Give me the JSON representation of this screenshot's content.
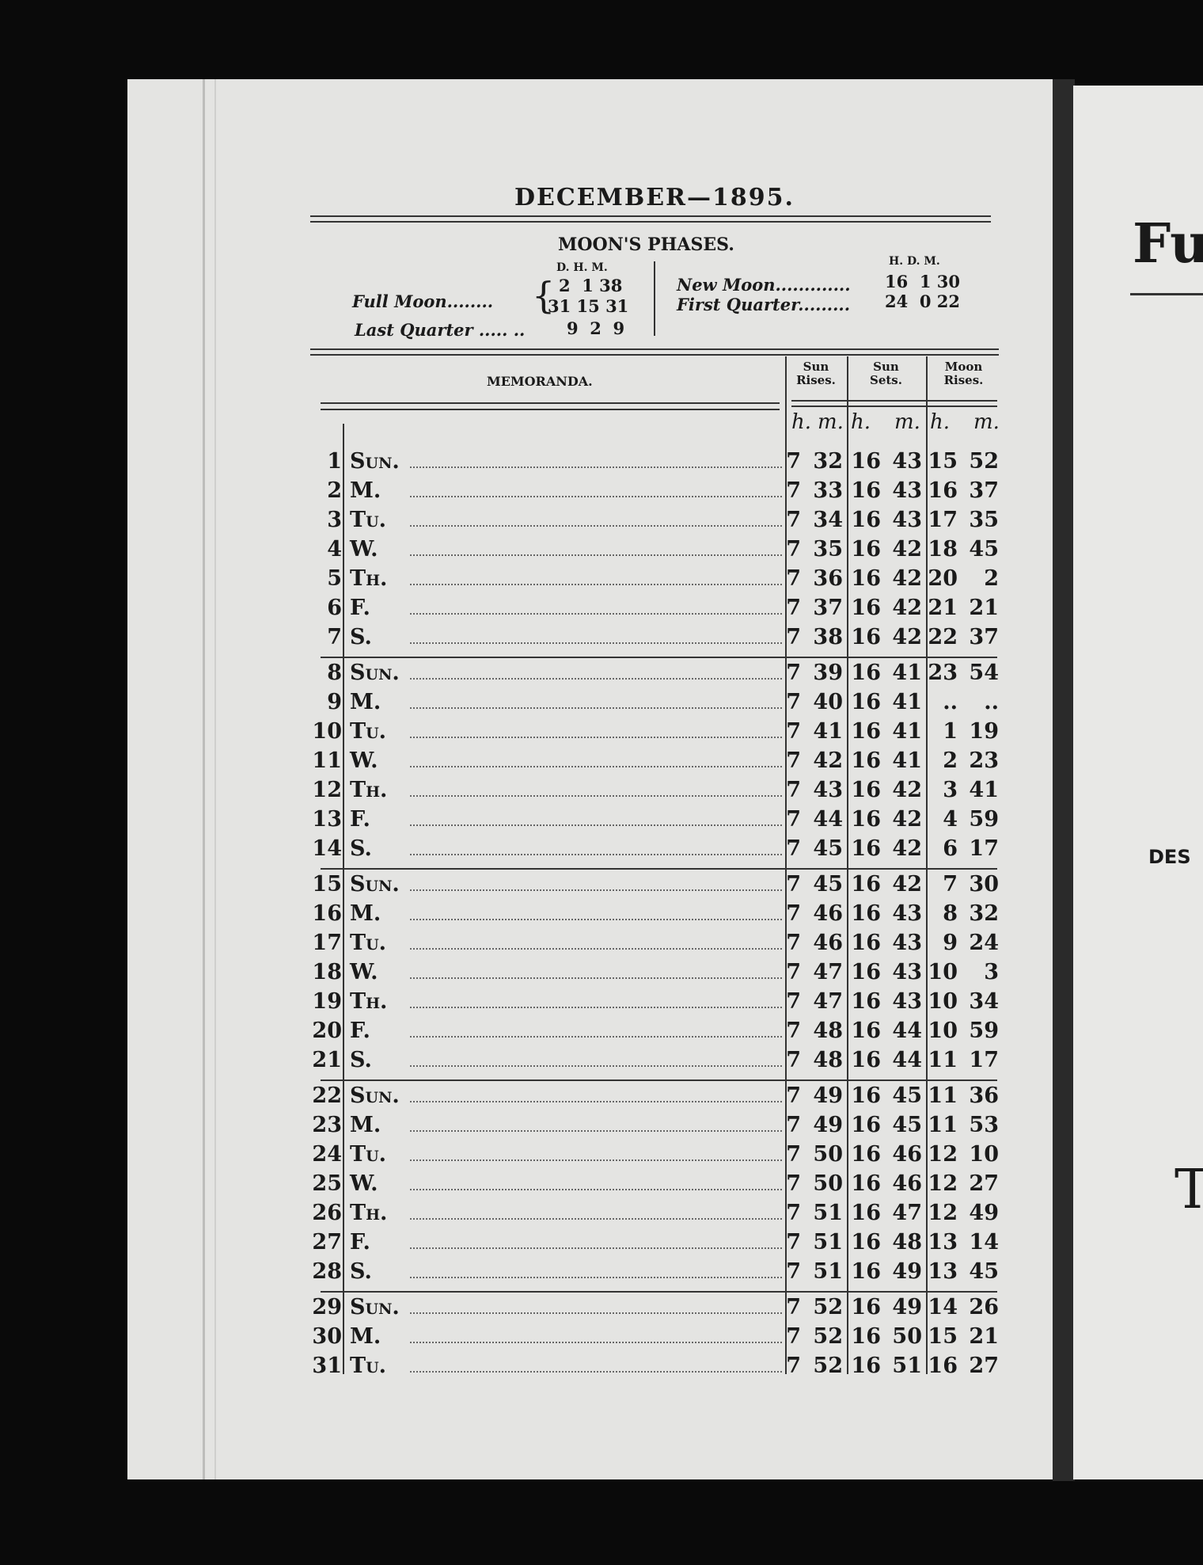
{
  "title": "DECEMBER—1895.",
  "moon_phases": {
    "heading": "MOON'S PHASES.",
    "left_cols": "D. H. M.",
    "right_cols": "H. D. M.",
    "full_moon": {
      "label": "Full Moon........",
      "values1": "2  1 38",
      "values2": "31 15 31"
    },
    "last_quarter": {
      "label": "Last Quarter ..... ..",
      "values": "9  2  9"
    },
    "new_moon": {
      "label": "New Moon.............",
      "values": "16  1 30"
    },
    "first_quarter": {
      "label": "First Quarter.........",
      "values": "24  0 22"
    }
  },
  "table": {
    "memoranda": "MEMORANDA.",
    "sun_rises": "Sun Rises.",
    "sun_sets": "Sun Sets.",
    "moon_rises": "Moon Rises.",
    "h": "h.",
    "m": "m.",
    "rows": [
      [
        "1",
        "Sun.",
        "7",
        "32",
        "16",
        "43",
        "15",
        "52"
      ],
      [
        "2",
        "M.",
        "7",
        "33",
        "16",
        "43",
        "16",
        "37"
      ],
      [
        "3",
        "Tu.",
        "7",
        "34",
        "16",
        "43",
        "17",
        "35"
      ],
      [
        "4",
        "W.",
        "7",
        "35",
        "16",
        "42",
        "18",
        "45"
      ],
      [
        "5",
        "Th.",
        "7",
        "36",
        "16",
        "42",
        "20",
        "2"
      ],
      [
        "6",
        "F.",
        "7",
        "37",
        "16",
        "42",
        "21",
        "21"
      ],
      [
        "7",
        "S.",
        "7",
        "38",
        "16",
        "42",
        "22",
        "37"
      ],
      [
        "8",
        "Sun.",
        "7",
        "39",
        "16",
        "41",
        "23",
        "54"
      ],
      [
        "9",
        "M.",
        "7",
        "40",
        "16",
        "41",
        "..",
        ".."
      ],
      [
        "10",
        "Tu.",
        "7",
        "41",
        "16",
        "41",
        "1",
        "19"
      ],
      [
        "11",
        "W.",
        "7",
        "42",
        "16",
        "41",
        "2",
        "23"
      ],
      [
        "12",
        "Th.",
        "7",
        "43",
        "16",
        "42",
        "3",
        "41"
      ],
      [
        "13",
        "F.",
        "7",
        "44",
        "16",
        "42",
        "4",
        "59"
      ],
      [
        "14",
        "S.",
        "7",
        "45",
        "16",
        "42",
        "6",
        "17"
      ],
      [
        "15",
        "Sun.",
        "7",
        "45",
        "16",
        "42",
        "7",
        "30"
      ],
      [
        "16",
        "M.",
        "7",
        "46",
        "16",
        "43",
        "8",
        "32"
      ],
      [
        "17",
        "Tu.",
        "7",
        "46",
        "16",
        "43",
        "9",
        "24"
      ],
      [
        "18",
        "W.",
        "7",
        "47",
        "16",
        "43",
        "10",
        "3"
      ],
      [
        "19",
        "Th.",
        "7",
        "47",
        "16",
        "43",
        "10",
        "34"
      ],
      [
        "20",
        "F.",
        "7",
        "48",
        "16",
        "44",
        "10",
        "59"
      ],
      [
        "21",
        "S.",
        "7",
        "48",
        "16",
        "44",
        "11",
        "17"
      ],
      [
        "22",
        "Sun.",
        "7",
        "49",
        "16",
        "45",
        "11",
        "36"
      ],
      [
        "23",
        "M.",
        "7",
        "49",
        "16",
        "45",
        "11",
        "53"
      ],
      [
        "24",
        "Tu.",
        "7",
        "50",
        "16",
        "46",
        "12",
        "10"
      ],
      [
        "25",
        "W.",
        "7",
        "50",
        "16",
        "46",
        "12",
        "27"
      ],
      [
        "26",
        "Th.",
        "7",
        "51",
        "16",
        "47",
        "12",
        "49"
      ],
      [
        "27",
        "F.",
        "7",
        "51",
        "16",
        "48",
        "13",
        "14"
      ],
      [
        "28",
        "S.",
        "7",
        "51",
        "16",
        "49",
        "13",
        "45"
      ],
      [
        "29",
        "Sun.",
        "7",
        "52",
        "16",
        "49",
        "14",
        "26"
      ],
      [
        "30",
        "M.",
        "7",
        "52",
        "16",
        "50",
        "15",
        "21"
      ],
      [
        "31",
        "Tu.",
        "7",
        "52",
        "16",
        "51",
        "16",
        "27"
      ]
    ]
  },
  "right_page": {
    "big": "Fu",
    "des": "DES",
    "t": "T"
  }
}
